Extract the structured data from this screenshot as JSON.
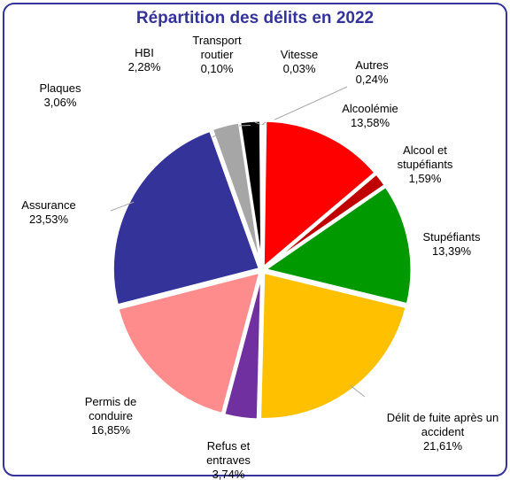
{
  "chart_data": {
    "type": "pie",
    "title": "Répartition des délits en 2022",
    "categories": [
      "Autres",
      "Alcoolémie",
      "Alcool et stupéfiants",
      "Stupéfiants",
      "Délit de fuite après un accident",
      "Refus et entraves",
      "Permis de conduire",
      "Assurance",
      "Plaques",
      "HBI",
      "Transport routier",
      "Vitesse"
    ],
    "values": [
      0.24,
      13.58,
      1.59,
      13.39,
      21.61,
      3.74,
      16.85,
      23.53,
      3.06,
      2.28,
      0.1,
      0.03
    ],
    "value_labels": [
      "0,24%",
      "13,58%",
      "1,59%",
      "13,39%",
      "21,61%",
      "3,74%",
      "16,85%",
      "23,53%",
      "3,06%",
      "2,28%",
      "0,10%",
      "0,03%"
    ],
    "colors": [
      "#8c8c8c",
      "#ff0000",
      "#c00000",
      "#009900",
      "#ffc000",
      "#7030a0",
      "#ff8c8c",
      "#333399",
      "#a6a6a6",
      "#000000",
      "#bfbfbf",
      "#7f7f7f"
    ]
  }
}
